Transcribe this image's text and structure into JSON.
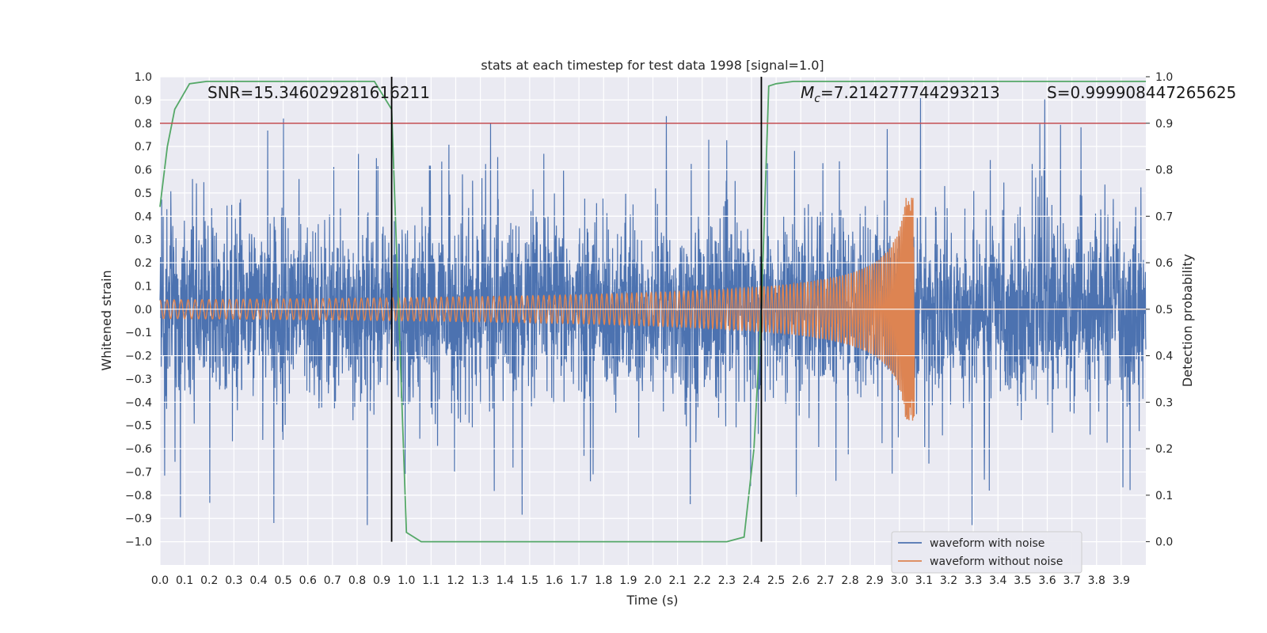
{
  "chart_data": {
    "type": "line",
    "title": "stats at each timestep for test data 1998 [signal=1.0]",
    "xlabel": "Time (s)",
    "ylabel": "Whitened strain",
    "ylabel_right": "Detection probability",
    "xlim": [
      0.0,
      4.0
    ],
    "ylim": [
      -1.1,
      1.0
    ],
    "ylim_right": [
      -0.05,
      1.0
    ],
    "x_ticks": [
      0.0,
      0.1,
      0.2,
      0.3,
      0.4,
      0.5,
      0.6,
      0.7,
      0.8,
      0.9,
      1.0,
      1.1,
      1.2,
      1.3,
      1.4,
      1.5,
      1.6,
      1.7,
      1.8,
      1.9,
      2.0,
      2.1,
      2.2,
      2.3,
      2.4,
      2.5,
      2.6,
      2.7,
      2.8,
      2.9,
      3.0,
      3.1,
      3.2,
      3.3,
      3.4,
      3.5,
      3.6,
      3.7,
      3.8,
      3.9
    ],
    "x_tick_labels": [
      "0.0",
      "0.1",
      "0.2",
      "0.3",
      "0.4",
      "0.5",
      "0.6",
      "0.7",
      "0.8",
      "0.9",
      "1.0",
      "1.1",
      "1.2",
      "1.3",
      "1.4",
      "1.5",
      "1.6",
      "1.7",
      "1.8",
      "1.9",
      "2.0",
      "2.1",
      "2.2",
      "2.3",
      "2.4",
      "2.5",
      "2.6",
      "2.7",
      "2.8",
      "2.9",
      "3.0",
      "3.1",
      "3.2",
      "3.3",
      "3.4",
      "3.5",
      "3.6",
      "3.7",
      "3.8",
      "3.9"
    ],
    "y_ticks": [
      1.0,
      0.9,
      0.8,
      0.7,
      0.6,
      0.5,
      0.4,
      0.3,
      0.2,
      0.1,
      0.0,
      -0.1,
      -0.2,
      -0.3,
      -0.4,
      -0.5,
      -0.6,
      -0.7,
      -0.8,
      -0.9,
      -1.0
    ],
    "y_tick_labels": [
      "1.0",
      "0.9",
      "0.8",
      "0.7",
      "0.6",
      "0.5",
      "0.4",
      "0.3",
      "0.2",
      "0.1",
      "0.0",
      "−0.1",
      "−0.2",
      "−0.3",
      "−0.4",
      "−0.5",
      "−0.6",
      "−0.7",
      "−0.8",
      "−0.9",
      "−1.0"
    ],
    "y_ticks_right": [
      0.0,
      0.1,
      0.2,
      0.3,
      0.4,
      0.5,
      0.6,
      0.7,
      0.8,
      0.9,
      1.0
    ],
    "y_tick_labels_right": [
      "0.0",
      "0.1",
      "0.2",
      "0.3",
      "0.4",
      "0.5",
      "0.6",
      "0.7",
      "0.8",
      "0.9",
      "1.0"
    ],
    "grid": true,
    "legend_position": "bottom-right",
    "series": [
      {
        "name": "waveform with noise",
        "color": "#4c72b0",
        "kind": "noise",
        "noise_amplitude_typical": 0.3,
        "noise_peak": 0.92
      },
      {
        "name": "waveform without noise",
        "color": "#dd8452",
        "kind": "chirp",
        "amplitude_start": 0.04,
        "amplitude_peak": 0.48,
        "merger_time": 3.06,
        "cycles_before_merger": 170
      },
      {
        "name": "detection probability",
        "color": "#55a868",
        "axis": "right",
        "in_legend": false,
        "x": [
          0.0,
          0.03,
          0.06,
          0.12,
          0.19,
          0.25,
          0.4,
          0.6,
          0.8,
          0.87,
          0.94,
          1.0,
          1.06,
          1.2,
          1.5,
          1.8,
          2.0,
          2.2,
          2.3,
          2.37,
          2.41,
          2.44,
          2.47,
          2.5,
          2.57,
          2.7,
          3.0,
          3.5,
          4.0
        ],
        "y": [
          0.72,
          0.85,
          0.93,
          0.985,
          0.99,
          0.99,
          0.99,
          0.99,
          0.99,
          0.99,
          0.93,
          0.02,
          0.0,
          0.0,
          0.0,
          0.0,
          0.0,
          0.0,
          0.0,
          0.01,
          0.2,
          0.5,
          0.98,
          0.985,
          0.99,
          0.99,
          0.99,
          0.99,
          0.99
        ]
      }
    ],
    "reference_lines": [
      {
        "orientation": "horizontal",
        "axis": "right",
        "value": 0.9,
        "color": "#c44e52"
      },
      {
        "orientation": "vertical",
        "value": 0.94,
        "color": "#000000"
      },
      {
        "orientation": "vertical",
        "value": 2.44,
        "color": "#000000"
      }
    ],
    "annotations": {
      "snr": "SNR=15.346029281616211",
      "mc_symbol": "M",
      "mc_sub": "c",
      "mc_value": "=7.214277744293213",
      "s": "S=0.999908447265625"
    }
  }
}
